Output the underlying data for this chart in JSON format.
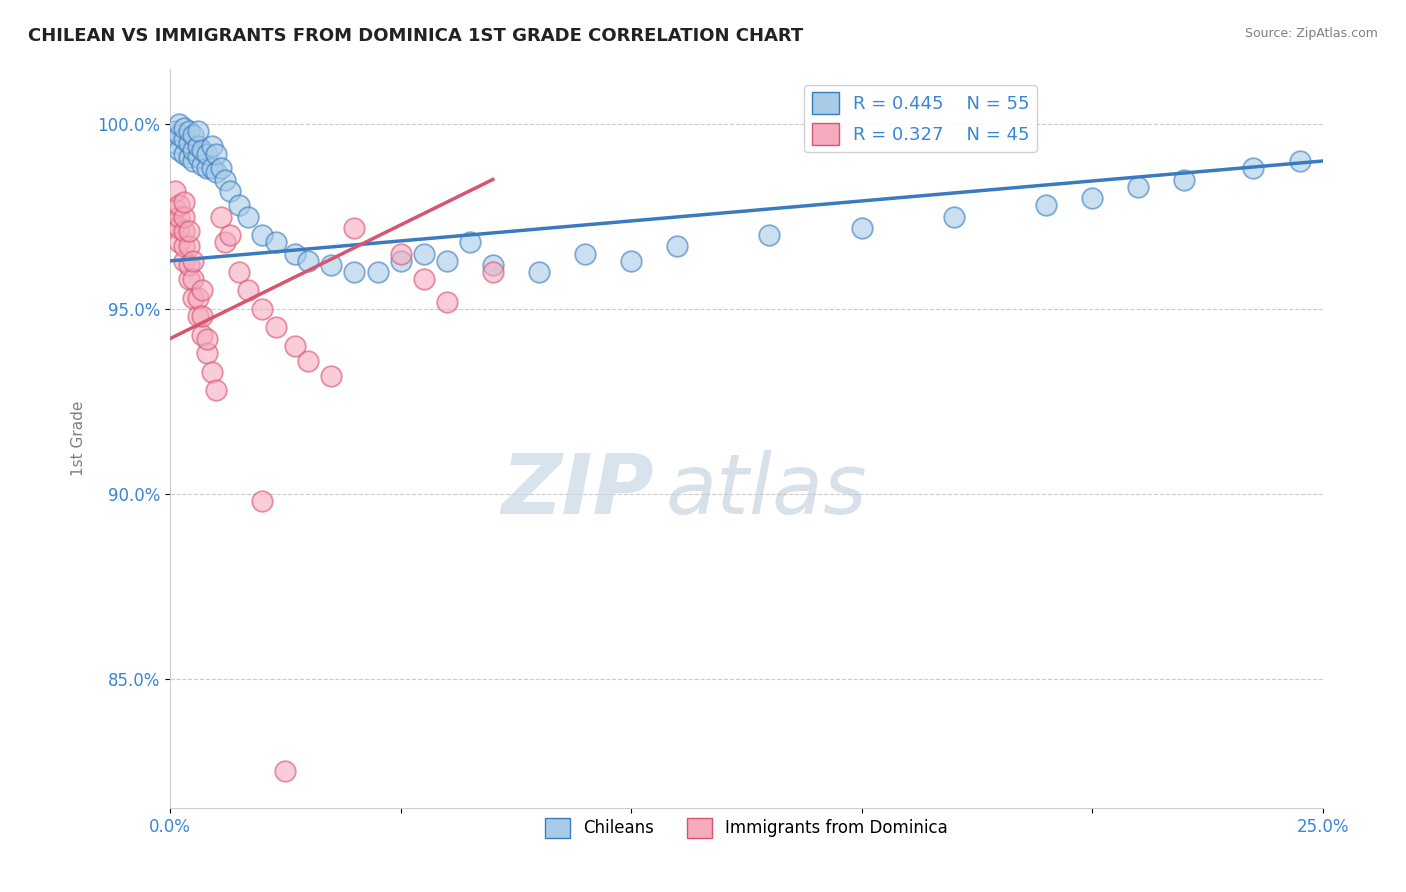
{
  "title": "CHILEAN VS IMMIGRANTS FROM DOMINICA 1ST GRADE CORRELATION CHART",
  "source": "Source: ZipAtlas.com",
  "ylabel": "1st Grade",
  "xlim": [
    0.0,
    0.25
  ],
  "ylim": [
    0.815,
    1.015
  ],
  "yticks": [
    0.85,
    0.9,
    0.95,
    1.0
  ],
  "ytick_labels": [
    "85.0%",
    "90.0%",
    "95.0%",
    "100.0%"
  ],
  "xticks": [
    0.0,
    0.05,
    0.1,
    0.15,
    0.2,
    0.25
  ],
  "xtick_labels": [
    "0.0%",
    "",
    "",
    "",
    "",
    "25.0%"
  ],
  "watermark_zip": "ZIP",
  "watermark_atlas": "atlas",
  "legend_r1": "R = 0.445",
  "legend_n1": "N = 55",
  "legend_r2": "R = 0.327",
  "legend_n2": "N = 45",
  "color_blue": "#a8cce8",
  "color_pink": "#f4abbe",
  "line_color_blue": "#3a7bbf",
  "line_color_pink": "#d9546e",
  "chilean_x": [
    0.001,
    0.001,
    0.002,
    0.002,
    0.002,
    0.003,
    0.003,
    0.003,
    0.004,
    0.004,
    0.004,
    0.005,
    0.005,
    0.005,
    0.006,
    0.006,
    0.006,
    0.007,
    0.007,
    0.008,
    0.008,
    0.009,
    0.009,
    0.01,
    0.01,
    0.011,
    0.012,
    0.013,
    0.015,
    0.017,
    0.02,
    0.023,
    0.027,
    0.03,
    0.035,
    0.04,
    0.045,
    0.05,
    0.055,
    0.06,
    0.065,
    0.07,
    0.08,
    0.09,
    0.1,
    0.11,
    0.13,
    0.15,
    0.17,
    0.19,
    0.2,
    0.21,
    0.22,
    0.235,
    0.245
  ],
  "chilean_y": [
    0.995,
    0.998,
    0.993,
    0.997,
    1.0,
    0.992,
    0.996,
    0.999,
    0.991,
    0.995,
    0.998,
    0.99,
    0.993,
    0.997,
    0.991,
    0.994,
    0.998,
    0.989,
    0.993,
    0.988,
    0.992,
    0.988,
    0.994,
    0.987,
    0.992,
    0.988,
    0.985,
    0.982,
    0.978,
    0.975,
    0.97,
    0.968,
    0.965,
    0.963,
    0.962,
    0.96,
    0.96,
    0.963,
    0.965,
    0.963,
    0.968,
    0.962,
    0.96,
    0.965,
    0.963,
    0.967,
    0.97,
    0.972,
    0.975,
    0.978,
    0.98,
    0.983,
    0.985,
    0.988,
    0.99
  ],
  "dominica_x": [
    0.001,
    0.001,
    0.001,
    0.002,
    0.002,
    0.002,
    0.002,
    0.003,
    0.003,
    0.003,
    0.003,
    0.003,
    0.004,
    0.004,
    0.004,
    0.004,
    0.005,
    0.005,
    0.005,
    0.006,
    0.006,
    0.007,
    0.007,
    0.007,
    0.008,
    0.008,
    0.009,
    0.01,
    0.011,
    0.012,
    0.013,
    0.015,
    0.017,
    0.02,
    0.023,
    0.027,
    0.03,
    0.035,
    0.04,
    0.05,
    0.055,
    0.06,
    0.07,
    0.02,
    0.025
  ],
  "dominica_y": [
    0.973,
    0.977,
    0.982,
    0.968,
    0.972,
    0.975,
    0.978,
    0.963,
    0.967,
    0.971,
    0.975,
    0.979,
    0.958,
    0.962,
    0.967,
    0.971,
    0.953,
    0.958,
    0.963,
    0.948,
    0.953,
    0.943,
    0.948,
    0.955,
    0.938,
    0.942,
    0.933,
    0.928,
    0.975,
    0.968,
    0.97,
    0.96,
    0.955,
    0.95,
    0.945,
    0.94,
    0.936,
    0.932,
    0.972,
    0.965,
    0.958,
    0.952,
    0.96,
    0.898,
    0.825
  ],
  "trendline_blue_x0": 0.0,
  "trendline_blue_y0": 0.963,
  "trendline_blue_x1": 0.25,
  "trendline_blue_y1": 0.99,
  "trendline_pink_x0": 0.0,
  "trendline_pink_y0": 0.942,
  "trendline_pink_x1": 0.07,
  "trendline_pink_y1": 0.985
}
